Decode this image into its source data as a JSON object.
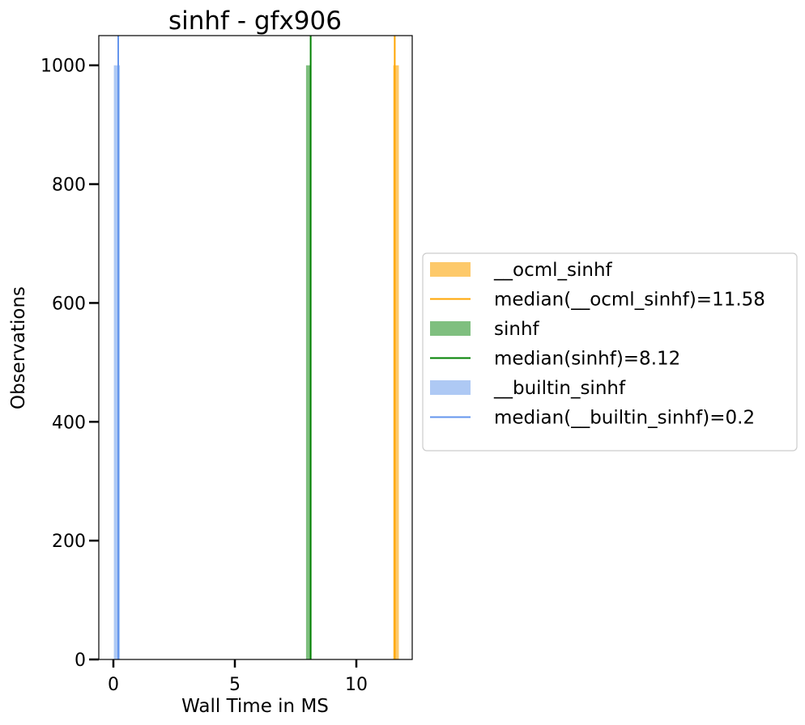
{
  "chart_data": {
    "type": "bar",
    "title": "sinhf - gfx906",
    "xlabel": "Wall Time in MS",
    "ylabel": "Observations",
    "xlim": [
      -0.6,
      12.3
    ],
    "ylim": [
      0,
      1050
    ],
    "xticks": [
      0,
      5,
      10
    ],
    "yticks": [
      0,
      200,
      400,
      600,
      800,
      1000
    ],
    "grid": false,
    "legend_position": "right-outside",
    "series": [
      {
        "name": "__ocml_sinhf",
        "color": "#fdc96a",
        "bins": [
          {
            "x0": 11.52,
            "x1": 11.75,
            "count": 1000
          }
        ],
        "median": 11.58,
        "median_label": "median(__ocml_sinhf)=11.58",
        "median_color": "#ffa500"
      },
      {
        "name": "sinhf",
        "color": "#7fbf7f",
        "bins": [
          {
            "x0": 7.93,
            "x1": 8.13,
            "count": 1000
          }
        ],
        "median": 8.12,
        "median_label": "median(sinhf)=8.12",
        "median_color": "#008000"
      },
      {
        "name": "__builtin_sinhf",
        "color": "#aec9f4",
        "bins": [
          {
            "x0": 0.02,
            "x1": 0.27,
            "count": 1000
          }
        ],
        "median": 0.2,
        "median_label": "median(__builtin_sinhf)=0.2",
        "median_color": "#6495ed"
      }
    ]
  }
}
